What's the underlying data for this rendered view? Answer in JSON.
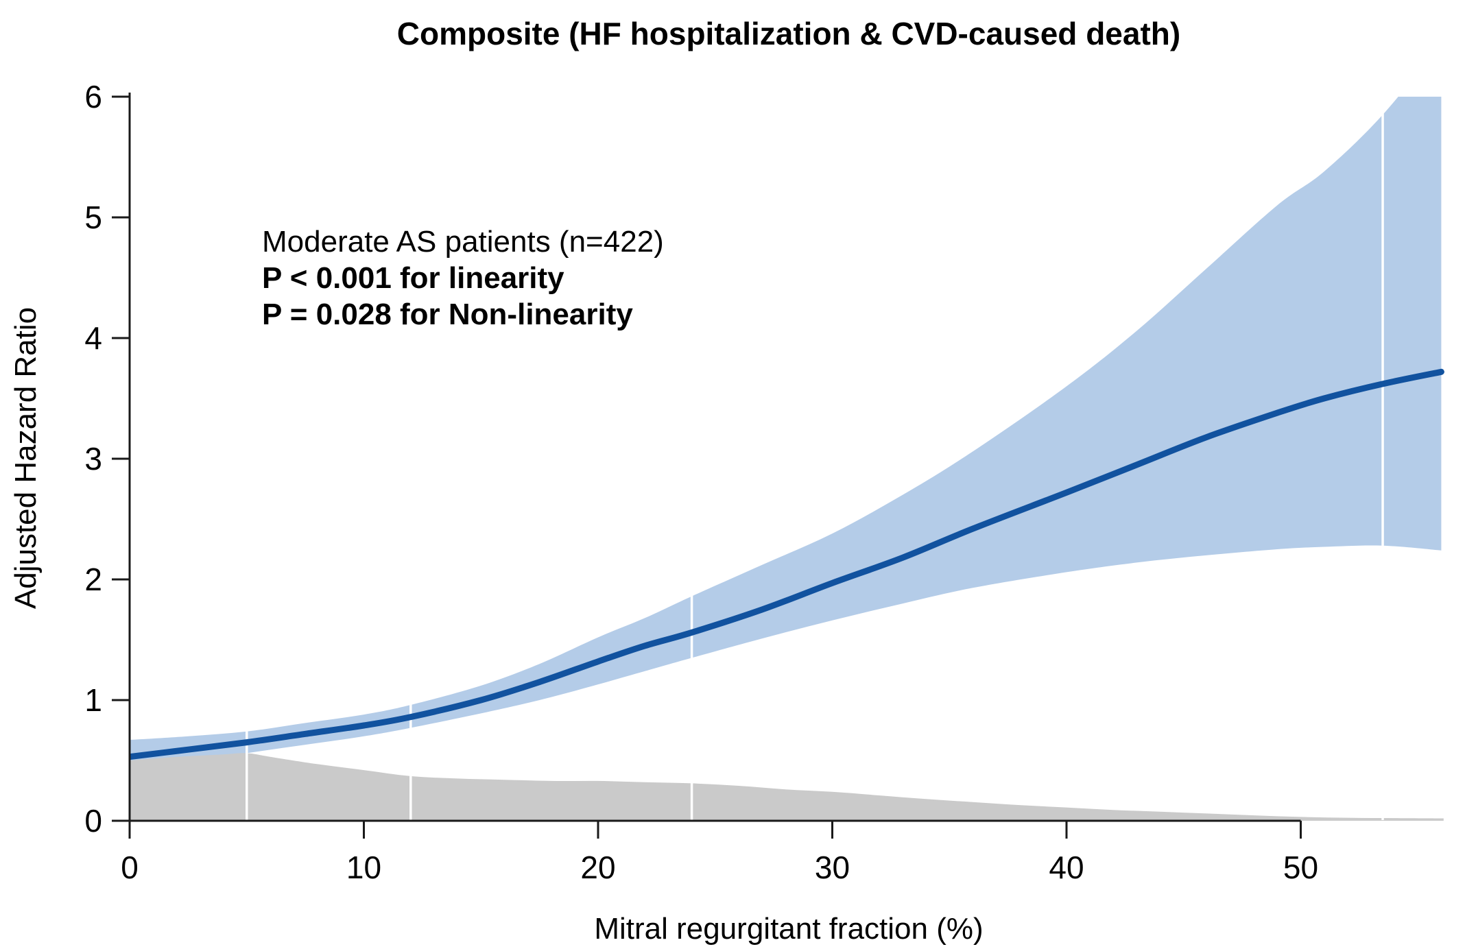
{
  "figure": {
    "title": "Composite (HF hospitalization & CVD-caused death)",
    "annotation": {
      "line1": "Moderate AS patients (n=422)",
      "line2": "P < 0.001 for linearity",
      "line3": "P = 0.028 for Non-linearity"
    }
  },
  "chart_data": {
    "type": "line",
    "title": "Composite (HF hospitalization & CVD-caused death)",
    "xlabel": "Mitral regurgitant fraction (%)",
    "ylabel": "Adjusted Hazard Ratio",
    "xlim": [
      0,
      57
    ],
    "ylim": [
      0,
      6
    ],
    "x_ticks": [
      0,
      10,
      20,
      30,
      40,
      50
    ],
    "y_ticks": [
      0,
      1,
      2,
      3,
      4,
      5,
      6
    ],
    "grid": false,
    "legend_position": "none",
    "knots_percent": [
      5,
      12,
      24,
      53.5
    ],
    "colors": {
      "hazard_line": "#11529f",
      "confidence_band": "#b4cce8",
      "density_fill": "#cacaca",
      "knot_line": "#ffffff",
      "axis": "#1a1a1a",
      "background": "#ffffff"
    },
    "series": [
      {
        "name": "adjusted-hazard-ratio",
        "x": [
          0,
          2.5,
          5,
          7.5,
          10,
          12,
          15,
          17.5,
          20,
          22,
          24,
          27,
          30,
          33,
          36,
          40,
          43,
          46,
          49,
          51,
          53.5,
          56
        ],
        "y": [
          0.53,
          0.59,
          0.65,
          0.72,
          0.79,
          0.86,
          1.0,
          1.15,
          1.32,
          1.45,
          1.56,
          1.75,
          1.97,
          2.18,
          2.42,
          2.72,
          2.95,
          3.18,
          3.38,
          3.5,
          3.62,
          3.72
        ]
      },
      {
        "name": "ci-upper",
        "x": [
          0,
          2.5,
          5,
          7.5,
          10,
          12,
          15,
          17.5,
          20,
          22,
          24,
          27,
          30,
          33,
          36,
          40,
          43,
          46,
          49,
          51,
          53.5,
          56
        ],
        "y": [
          0.67,
          0.7,
          0.74,
          0.81,
          0.88,
          0.96,
          1.12,
          1.3,
          1.52,
          1.68,
          1.86,
          2.12,
          2.38,
          2.7,
          3.06,
          3.6,
          4.06,
          4.58,
          5.1,
          5.38,
          5.85,
          6.45
        ]
      },
      {
        "name": "ci-lower",
        "x": [
          0,
          2.5,
          5,
          7.5,
          10,
          12,
          15,
          17.5,
          20,
          22,
          24,
          27,
          30,
          33,
          36,
          40,
          43,
          46,
          49,
          51,
          53.5,
          56
        ],
        "y": [
          0.42,
          0.48,
          0.56,
          0.63,
          0.7,
          0.77,
          0.89,
          1.0,
          1.13,
          1.24,
          1.35,
          1.51,
          1.66,
          1.8,
          1.93,
          2.06,
          2.14,
          2.2,
          2.25,
          2.27,
          2.28,
          2.24
        ]
      },
      {
        "name": "mr-fraction-density",
        "x": [
          0,
          2,
          4,
          5,
          6,
          8,
          10,
          12,
          14,
          16,
          18,
          20,
          22,
          24,
          26,
          28,
          30,
          32,
          34,
          36,
          38,
          40,
          42,
          44,
          46,
          48,
          50,
          52,
          54,
          56.1
        ],
        "y": [
          0.5,
          0.53,
          0.55,
          0.56,
          0.53,
          0.47,
          0.42,
          0.37,
          0.35,
          0.34,
          0.33,
          0.33,
          0.32,
          0.31,
          0.29,
          0.26,
          0.24,
          0.21,
          0.18,
          0.155,
          0.13,
          0.11,
          0.09,
          0.075,
          0.06,
          0.045,
          0.032,
          0.025,
          0.022,
          0.02
        ]
      }
    ]
  }
}
